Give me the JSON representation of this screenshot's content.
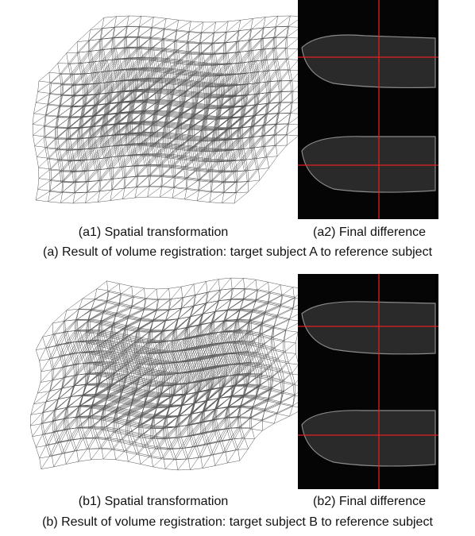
{
  "panels": [
    {
      "subfigures": [
        {
          "caption": "(a1) Spatial transformation"
        },
        {
          "caption": "(a2) Final difference"
        }
      ],
      "caption": "(a) Result of volume registration: target subject A to reference subject"
    },
    {
      "subfigures": [
        {
          "caption": "(b1) Spatial transformation"
        },
        {
          "caption": "(b2) Final difference"
        }
      ],
      "caption": "(b) Result of volume registration: target subject B to reference subject"
    }
  ]
}
